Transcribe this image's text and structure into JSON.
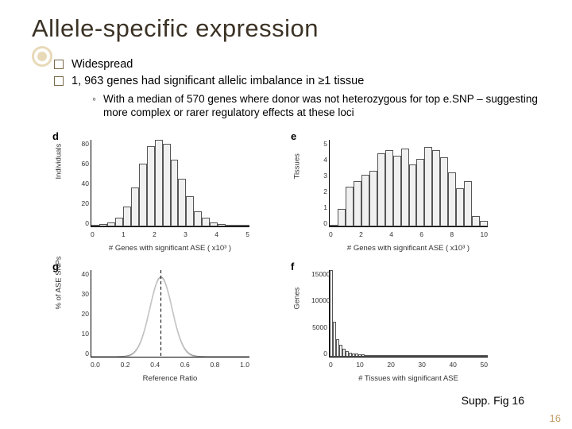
{
  "title": "Allele-specific expression",
  "bullets": [
    "Widespread",
    "1, 963 genes had significant allelic imbalance in ≥1 tissue"
  ],
  "sub": "With a median of 570 genes where donor was not heterozygous for top e.SNP – suggesting more complex or rarer regulatory effects at these loci",
  "supp_text": "Supp. Fig 16",
  "pagenum": "16",
  "colors": {
    "title": "#3b3225",
    "accent": "#e8d9b9",
    "bar_fill": "#f0f0f0",
    "bar_stroke": "#555555",
    "text": "#000000",
    "pagenum": "#c59f6b"
  },
  "plots": {
    "d": {
      "letter": "d",
      "type": "histogram",
      "ylabel": "Individuals",
      "xlabel": "# Genes with significant ASE ( x10³ )",
      "xticks": [
        "0",
        "1",
        "2",
        "3",
        "4",
        "5"
      ],
      "yticks": [
        "0",
        "20",
        "40",
        "60",
        "80"
      ],
      "ylim": [
        0,
        80
      ],
      "bars": [
        1,
        2,
        4,
        8,
        18,
        36,
        58,
        74,
        80,
        76,
        62,
        44,
        28,
        14,
        8,
        4,
        2,
        1,
        1,
        0
      ]
    },
    "e": {
      "letter": "e",
      "type": "histogram",
      "ylabel": "Tissues",
      "xlabel": "# Genes with significant ASE ( x10³ )",
      "xticks": [
        "0",
        "2",
        "4",
        "6",
        "8",
        "10"
      ],
      "yticks": [
        "0",
        "1",
        "2",
        "3",
        "4",
        "5"
      ],
      "ylim": [
        0,
        5
      ],
      "bars": [
        0,
        1,
        2.3,
        2.6,
        3.0,
        3.2,
        4.2,
        4.4,
        4.1,
        4.5,
        3.6,
        3.9,
        4.6,
        4.4,
        4.0,
        3.1,
        2.2,
        2.6,
        0.6,
        0.3
      ]
    },
    "g": {
      "letter": "g",
      "type": "density-line",
      "ylabel": "% of ASE SNPs",
      "xlabel": "Reference Ratio",
      "xticks": [
        "0.0",
        "0.2",
        "0.4",
        "0.6",
        "0.8",
        "1.0"
      ],
      "yticks": [
        "0",
        "10",
        "20",
        "30",
        "40"
      ],
      "ylim": [
        0,
        40
      ],
      "peak": {
        "x_ratio": 0.44,
        "height_ratio": 0.92
      },
      "line_color": "#777777",
      "dash_x_ratio": 0.44
    },
    "f": {
      "letter": "f",
      "type": "histogram-decay",
      "ylabel": "Genes",
      "xlabel": "# Tissues with significant ASE",
      "xticks": [
        "0",
        "10",
        "20",
        "30",
        "40",
        "50"
      ],
      "yticks": [
        "0",
        "5000",
        "10000",
        "15000"
      ],
      "ylim": [
        0,
        15000
      ],
      "bars": [
        15000,
        6000,
        3000,
        2000,
        1400,
        1000,
        750,
        600,
        500,
        420,
        360,
        300,
        260,
        220,
        190,
        160,
        140,
        120,
        105,
        90,
        78,
        68,
        58,
        50,
        44,
        38,
        33,
        29,
        25,
        22,
        19,
        16,
        14,
        12,
        10,
        9,
        8,
        7,
        6,
        5,
        4,
        4,
        3,
        3,
        3,
        2,
        2,
        2,
        2,
        2
      ]
    }
  }
}
